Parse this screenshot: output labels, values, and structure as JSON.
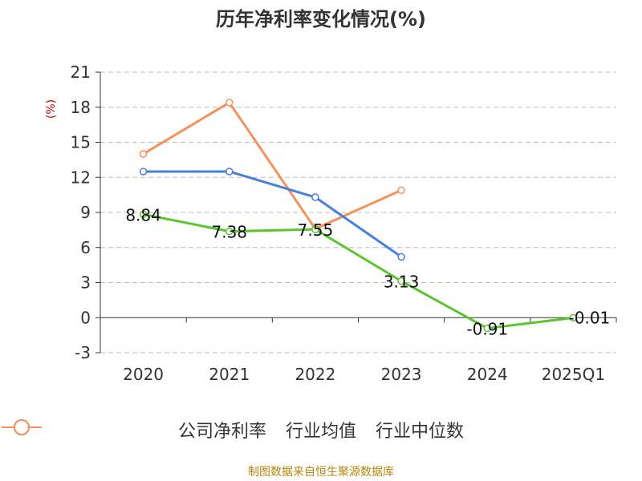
{
  "title": "历年净利率变化情况(%)",
  "source_note": "制图数据来自恒生聚源数据库",
  "chart_data": {
    "type": "line",
    "title": "历年净利率变化情况(%)",
    "ylabel": "(%)",
    "xlabel": "",
    "categories": [
      "2020",
      "2021",
      "2022",
      "2023",
      "2024",
      "2025Q1"
    ],
    "ylim": [
      -3,
      21
    ],
    "yticks": [
      -3,
      0,
      3,
      6,
      9,
      12,
      15,
      18,
      21
    ],
    "grid": true,
    "legend_position": "bottom",
    "series": [
      {
        "name": "公司净利率",
        "color": "#5bc42e",
        "values": [
          8.84,
          7.38,
          7.55,
          3.13,
          -0.91,
          -0.01
        ],
        "labels": [
          "8.84",
          "7.38",
          "7.55",
          "3.13",
          "-0.91",
          "-0.01"
        ]
      },
      {
        "name": "行业均值",
        "color": "#4a7fdc",
        "values": [
          12.5,
          12.5,
          10.3,
          5.2,
          null,
          null
        ]
      },
      {
        "name": "行业中位数",
        "color": "#f4925a",
        "values": [
          14.0,
          18.4,
          7.6,
          10.9,
          null,
          null
        ]
      }
    ]
  }
}
